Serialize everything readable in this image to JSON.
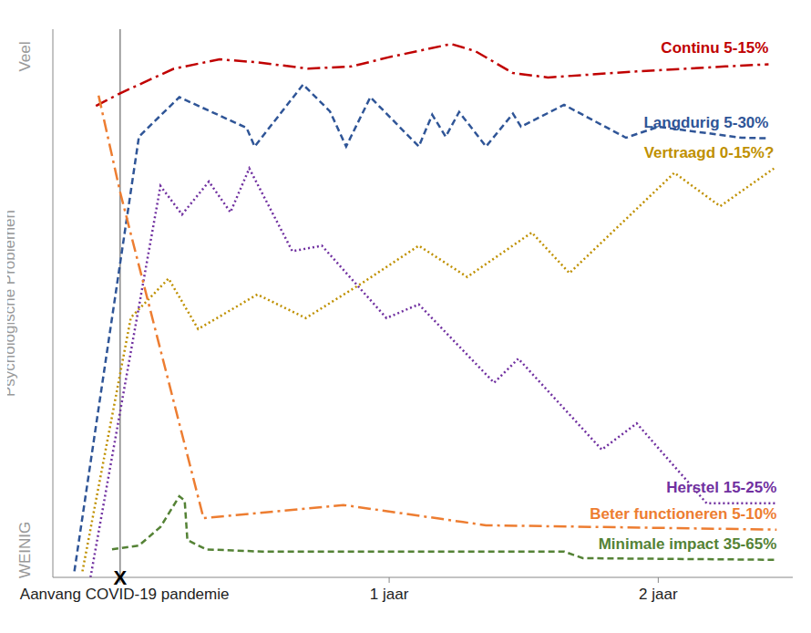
{
  "chart_data": {
    "type": "line",
    "y_label": "Psychologische Problemen",
    "xlim": [
      -0.25,
      2.5
    ],
    "xticks": [
      {
        "value": 0,
        "label": "Aanvang COVID-19 pandemie"
      },
      {
        "value": 1,
        "label": "1 jaar"
      },
      {
        "value": 2,
        "label": "2 jaar"
      }
    ],
    "ylim": [
      0,
      100
    ],
    "yticks": [
      {
        "value": 5,
        "label": "WEINIG"
      },
      {
        "value": 95,
        "label": "Veel"
      }
    ],
    "grid": false,
    "annotations": [
      {
        "text": "X",
        "x": 0,
        "y": 0
      }
    ],
    "series": [
      {
        "name": "Continu 5-15%",
        "color": "#C00000",
        "line_style": "dash-dot",
        "x": [
          -0.09,
          0,
          0.2,
          0.37,
          0.5,
          0.7,
          0.86,
          1.0,
          1.23,
          1.32,
          1.46,
          1.59,
          1.92,
          2.25,
          2.41
        ],
        "values": [
          86.0,
          88.3,
          92.8,
          94.5,
          94.0,
          92.8,
          93.2,
          94.9,
          97.3,
          96.0,
          92.0,
          91.2,
          92.3,
          93.2,
          93.6
        ]
      },
      {
        "name": "Langdurig 5-30%",
        "color": "#2F5597",
        "line_style": "dashed",
        "x": [
          -0.17,
          0.07,
          0.22,
          0.47,
          0.5,
          0.68,
          0.78,
          0.84,
          0.93,
          1.11,
          1.16,
          1.21,
          1.26,
          1.36,
          1.46,
          1.49,
          1.65,
          1.88,
          2.0,
          2.31,
          2.41
        ],
        "values": [
          1.1,
          80.4,
          87.6,
          82.0,
          78.6,
          89.9,
          85.0,
          78.6,
          87.6,
          78.6,
          84.4,
          80.4,
          84.9,
          78.6,
          84.6,
          82.2,
          86.2,
          80.2,
          82.2,
          80.2,
          80.1
        ]
      },
      {
        "name": "Vertraagd 0-15%?",
        "color": "#BF9000",
        "line_style": "dotted",
        "x": [
          -0.14,
          0.04,
          0.18,
          0.29,
          0.51,
          0.69,
          0.9,
          1.11,
          1.29,
          1.53,
          1.67,
          2.06,
          2.23,
          2.43
        ],
        "values": [
          1.1,
          47.4,
          54.5,
          45.3,
          51.6,
          47.3,
          53.7,
          60.5,
          54.8,
          62.9,
          55.5,
          73.8,
          67.7,
          74.6
        ]
      },
      {
        "name": "Herstel 15-25%",
        "color": "#7030A0",
        "line_style": "dotted",
        "x": [
          -0.11,
          0.15,
          0.23,
          0.33,
          0.41,
          0.48,
          0.64,
          0.75,
          0.99,
          1.11,
          1.39,
          1.48,
          1.79,
          1.92,
          2.18,
          2.44
        ],
        "values": [
          0,
          71.4,
          66.2,
          72.2,
          66.6,
          74.6,
          59.5,
          60.5,
          47.3,
          49.8,
          35.5,
          39.9,
          23.3,
          28.1,
          13.5,
          13.5
        ]
      },
      {
        "name": "Beter functioneren 5-10%",
        "color": "#ED7D31",
        "line_style": "dash-dot",
        "x": [
          -0.08,
          0,
          0.31,
          0.83,
          1.36,
          2.44
        ],
        "values": [
          87.9,
          70.3,
          10.8,
          13.2,
          9.5,
          8.7
        ]
      },
      {
        "name": "Minimale impact 35-65%",
        "color": "#548235",
        "line_style": "dashed",
        "x": [
          -0.03,
          0.07,
          0.15,
          0.22,
          0.24,
          0.25,
          0.32,
          0.53,
          1.65,
          1.72,
          2.44
        ],
        "values": [
          5.1,
          5.8,
          9.2,
          14.8,
          14.0,
          6.8,
          5.1,
          4.7,
          4.7,
          3.5,
          3.2
        ]
      }
    ]
  }
}
